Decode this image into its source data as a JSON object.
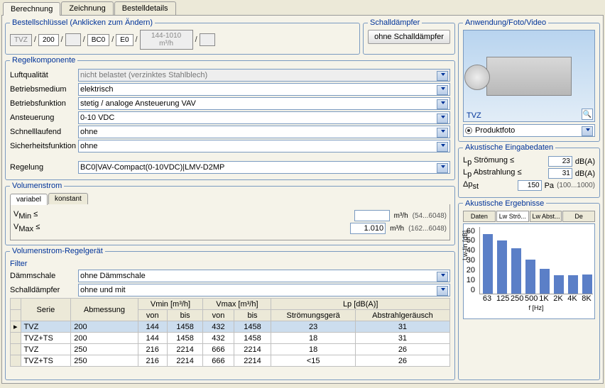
{
  "tabs": {
    "t1": "Berechnung",
    "t2": "Zeichnung",
    "t3": "Bestelldetails"
  },
  "orderKey": {
    "legend": "Bestellschlüssel (Anklicken zum Ändern)",
    "k1": "TVZ",
    "k2": "200",
    "k3": "",
    "k4": "BC0",
    "k5": "E0",
    "k6": "144-1010 m³/h",
    "k7": ""
  },
  "damper": {
    "legend": "Schalldämpfer",
    "button": "ohne Schalldämpfer"
  },
  "regel": {
    "legend": "Regelkomponente",
    "l1": "Luftqualität",
    "v1": "nicht belastet (verzinktes Stahlblech)",
    "l2": "Betriebsmedium",
    "v2": "elektrisch",
    "l3": "Betriebsfunktion",
    "v3": "stetig / analoge Ansteuerung VAV",
    "l4": "Ansteuerung",
    "v4": "0-10 VDC",
    "l5": "Schnelllaufend",
    "v5": "ohne",
    "l6": "Sicherheitsfunktion",
    "v6": "ohne",
    "l7": "Regelung",
    "v7": "BC0|VAV-Compact(0-10VDC)|LMV-D2MP"
  },
  "vol": {
    "legend": "Volumenstrom",
    "tab1": "variabel",
    "tab2": "konstant",
    "lmin": "V",
    "lminSub": "Min",
    "lminSym": "≤",
    "lmax": "V",
    "lmaxSub": "Max",
    "lmaxSym": "≤",
    "vmin": "",
    "vmax": "1.010",
    "unit": "m³/h",
    "rmin": "(54...6048)",
    "rmax": "(162...6048)"
  },
  "filter": {
    "legend": "Volumenstrom-Regelgerät",
    "sub": "Filter",
    "l1": "Dämmschale",
    "v1": "ohne Dämmschale",
    "l2": "Schalldämpfer",
    "v2": "ohne und mit"
  },
  "grid": {
    "h1": "Serie",
    "h2": "Abmessung",
    "h3": "Vmin [m³/h]",
    "h4": "Vmax [m³/h]",
    "h5": "Lp [dB(A)]",
    "sh1": "von",
    "sh2": "bis",
    "sh3": "von",
    "sh4": "bis",
    "sh5": "Strömungsgerä",
    "sh6": "Abstrahlgeräusch",
    "rows": [
      {
        "s": "TVZ",
        "a": "200",
        "v1": "144",
        "v2": "1458",
        "v3": "432",
        "v4": "1458",
        "l1": "23",
        "l2": "31",
        "sel": true
      },
      {
        "s": "TVZ+TS",
        "a": "200",
        "v1": "144",
        "v2": "1458",
        "v3": "432",
        "v4": "1458",
        "l1": "18",
        "l2": "31"
      },
      {
        "s": "TVZ",
        "a": "250",
        "v1": "216",
        "v2": "2214",
        "v3": "666",
        "v4": "2214",
        "l1": "18",
        "l2": "26"
      },
      {
        "s": "TVZ+TS",
        "a": "250",
        "v1": "216",
        "v2": "2214",
        "v3": "666",
        "v4": "2214",
        "l1": "<15",
        "l2": "26"
      }
    ]
  },
  "media": {
    "legend": "Anwendung/Foto/Video",
    "caption": "TVZ",
    "radio": "Produktfoto"
  },
  "akIn": {
    "legend": "Akustische Eingabedaten",
    "l1": "L",
    "l1sub": "p",
    "l1t": " Strömung ≤",
    "v1": "23",
    "u1": "dB(A)",
    "l2": "L",
    "l2sub": "p",
    "l2t": " Abstrahlung ≤",
    "v2": "31",
    "u2": "dB(A)",
    "l3": "Δp",
    "l3sub": "st",
    "v3": "150",
    "u3": "Pa",
    "r3": "(100...1000)"
  },
  "akOut": {
    "legend": "Akustische Ergebnisse",
    "t1": "Daten",
    "t2": "Lw Strö...",
    "t3": "Lw Abst...",
    "t4": "De"
  },
  "chart": {
    "ylabel": "Lw-lin [dB]",
    "xlabel": "f [Hz]",
    "ymax": 60,
    "yticks": [
      "60",
      "50",
      "40",
      "30",
      "20",
      "10",
      "0"
    ],
    "bars": [
      {
        "x": "63",
        "v": 53
      },
      {
        "x": "125",
        "v": 47
      },
      {
        "x": "250",
        "v": 40
      },
      {
        "x": "500",
        "v": 30
      },
      {
        "x": "1K",
        "v": 22
      },
      {
        "x": "2K",
        "v": 16
      },
      {
        "x": "4K",
        "v": 16
      },
      {
        "x": "8K",
        "v": 17
      }
    ],
    "barColor": "#5b7fc7"
  }
}
